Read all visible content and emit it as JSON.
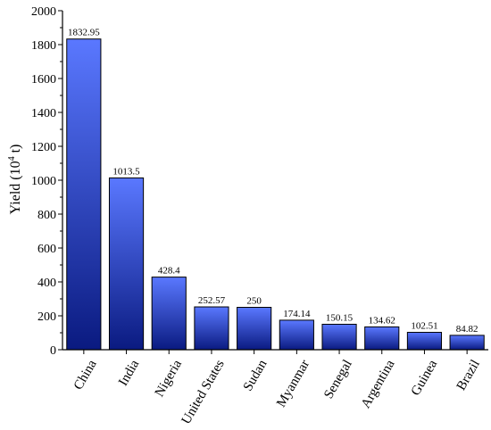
{
  "chart_data": {
    "type": "bar",
    "categories": [
      "China",
      "India",
      "Nigeria",
      "United States",
      "Sudan",
      "Myanmar",
      "Senegal",
      "Argentina",
      "Guinea",
      "Brazil"
    ],
    "values": [
      1832.95,
      1013.5,
      428.4,
      252.57,
      250,
      174.14,
      150.15,
      134.62,
      102.51,
      84.82
    ],
    "value_labels": [
      "1832.95",
      "1013.5",
      "428.4",
      "252.57",
      "250",
      "174.14",
      "150.15",
      "134.62",
      "102.51",
      "84.82"
    ],
    "title": "",
    "xlabel": "",
    "ylabel": "Yield (10",
    "ylabel_sup": "4",
    "ylabel_tail": " t)",
    "ylim": [
      0,
      2000
    ],
    "yticks": [
      0,
      200,
      400,
      600,
      800,
      1000,
      1200,
      1400,
      1600,
      1800,
      2000
    ],
    "grid": false,
    "colors": {
      "bar_top": "#5a78ff",
      "bar_bottom": "#0a1a80",
      "bar_edge": "#000000"
    }
  }
}
